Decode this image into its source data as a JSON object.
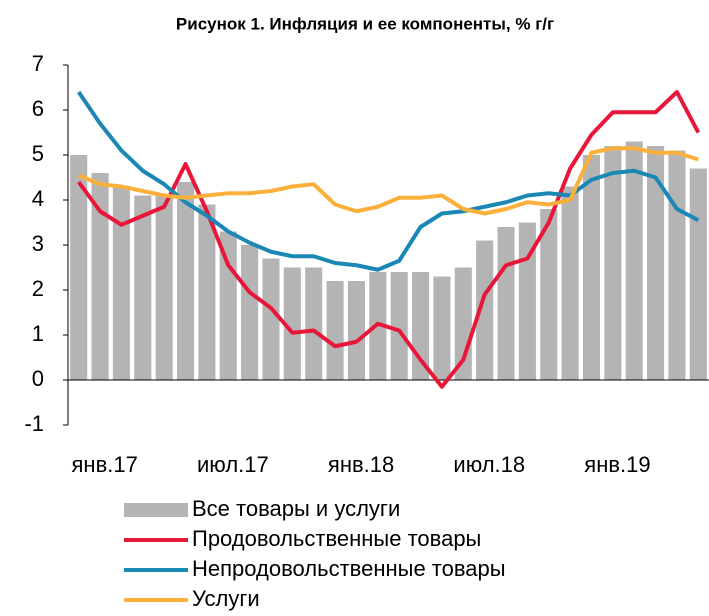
{
  "chart_data": {
    "type": "bar-line",
    "title": "Рисунок 1. Инфляция и ее компоненты, % г/г",
    "categories": [
      "янв.17",
      null,
      null,
      null,
      null,
      null,
      "июл.17",
      null,
      null,
      null,
      null,
      null,
      "янв.18",
      null,
      null,
      null,
      null,
      null,
      "июл.18",
      null,
      null,
      null,
      null,
      null,
      "янв.19",
      null,
      null,
      null,
      null,
      null
    ],
    "ylim": [
      -1,
      7
    ],
    "yticks": [
      -1,
      0,
      1,
      2,
      3,
      4,
      5,
      6,
      7
    ],
    "series": [
      {
        "name": "Все товары и услуги",
        "type": "bar",
        "color": "#b4b4b4",
        "values": [
          5.0,
          4.6,
          4.3,
          4.1,
          4.1,
          4.4,
          3.9,
          3.3,
          3.0,
          2.7,
          2.5,
          2.5,
          2.2,
          2.2,
          2.4,
          2.4,
          2.4,
          2.3,
          2.5,
          3.1,
          3.4,
          3.5,
          3.8,
          4.3,
          5.0,
          5.2,
          5.3,
          5.2,
          5.1,
          4.7
        ]
      },
      {
        "name": "Продовольственные товары",
        "type": "line",
        "color": "#e8173a",
        "values": [
          4.4,
          3.75,
          3.45,
          3.65,
          3.85,
          4.8,
          3.75,
          2.55,
          1.95,
          1.6,
          1.05,
          1.1,
          0.75,
          0.85,
          1.25,
          1.1,
          0.45,
          -0.15,
          0.45,
          1.9,
          2.55,
          2.7,
          3.5,
          4.7,
          5.45,
          5.95,
          5.95,
          5.95,
          6.4,
          5.5
        ]
      },
      {
        "name": "Непродовольственные товары",
        "type": "line",
        "color": "#1a87b5",
        "values": [
          6.4,
          5.7,
          5.1,
          4.65,
          4.35,
          3.95,
          3.65,
          3.3,
          3.05,
          2.85,
          2.75,
          2.75,
          2.6,
          2.55,
          2.45,
          2.65,
          3.4,
          3.7,
          3.75,
          3.85,
          3.95,
          4.1,
          4.15,
          4.1,
          4.45,
          4.6,
          4.65,
          4.5,
          3.8,
          3.55
        ]
      },
      {
        "name": "Услуги",
        "type": "line",
        "color": "#fbb03b",
        "values": [
          4.55,
          4.35,
          4.3,
          4.2,
          4.1,
          4.05,
          4.1,
          4.15,
          4.15,
          4.2,
          4.3,
          4.35,
          3.9,
          3.75,
          3.85,
          4.05,
          4.05,
          4.1,
          3.8,
          3.7,
          3.8,
          3.95,
          3.9,
          4.0,
          5.05,
          5.15,
          5.15,
          5.05,
          5.05,
          4.9
        ]
      }
    ]
  }
}
